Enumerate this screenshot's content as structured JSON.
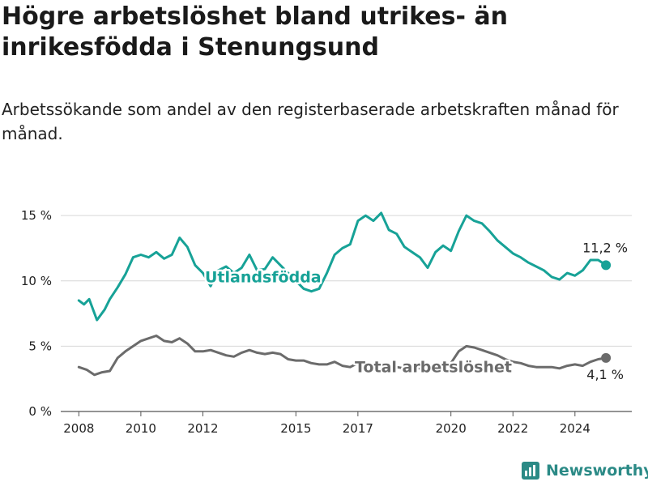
{
  "title": "Högre arbetslöshet bland utrikes- än inrikesfödda i Stenungsund",
  "subtitle": "Arbetssökande som andel av den registerbaserade arbetskraften månad för månad.",
  "brand": {
    "name": "Newsworthy",
    "icon": "bar-chart-logo-icon"
  },
  "colors": {
    "foreign": "#17a297",
    "total": "#6b6b6b",
    "grid": "#d7d7d7"
  },
  "chart_data": {
    "type": "line",
    "x_ticks": [
      "2008",
      "2010",
      "2012",
      "2015",
      "2017",
      "2020",
      "2022",
      "2024"
    ],
    "y_ticks": [
      "0 %",
      "5 %",
      "10 %",
      "15 %"
    ],
    "ylim": [
      0,
      16
    ],
    "xlim": [
      "2007-06",
      "2025-11"
    ],
    "grid": true,
    "series": [
      {
        "name": "Utlandsfödda",
        "end_label": "11,2 %",
        "points": [
          [
            "2008-01",
            8.5
          ],
          [
            "2008-03",
            8.2
          ],
          [
            "2008-05",
            8.6
          ],
          [
            "2008-08",
            7.0
          ],
          [
            "2008-11",
            7.8
          ],
          [
            "2009-01",
            8.6
          ],
          [
            "2009-04",
            9.5
          ],
          [
            "2009-07",
            10.5
          ],
          [
            "2009-10",
            11.8
          ],
          [
            "2010-01",
            12.0
          ],
          [
            "2010-04",
            11.8
          ],
          [
            "2010-07",
            12.2
          ],
          [
            "2010-10",
            11.7
          ],
          [
            "2011-01",
            12.0
          ],
          [
            "2011-04",
            13.3
          ],
          [
            "2011-07",
            12.6
          ],
          [
            "2011-10",
            11.2
          ],
          [
            "2012-01",
            10.6
          ],
          [
            "2012-04",
            9.6
          ],
          [
            "2012-07",
            10.8
          ],
          [
            "2012-10",
            11.1
          ],
          [
            "2013-01",
            10.6
          ],
          [
            "2013-04",
            11.0
          ],
          [
            "2013-07",
            12.0
          ],
          [
            "2013-10",
            10.8
          ],
          [
            "2014-01",
            10.9
          ],
          [
            "2014-04",
            11.8
          ],
          [
            "2014-07",
            11.2
          ],
          [
            "2014-10",
            10.6
          ],
          [
            "2015-01",
            10.0
          ],
          [
            "2015-04",
            9.4
          ],
          [
            "2015-07",
            9.2
          ],
          [
            "2015-10",
            9.4
          ],
          [
            "2016-01",
            10.6
          ],
          [
            "2016-04",
            12.0
          ],
          [
            "2016-07",
            12.5
          ],
          [
            "2016-10",
            12.8
          ],
          [
            "2017-01",
            14.6
          ],
          [
            "2017-04",
            15.0
          ],
          [
            "2017-07",
            14.6
          ],
          [
            "2017-10",
            15.2
          ],
          [
            "2018-01",
            13.9
          ],
          [
            "2018-04",
            13.6
          ],
          [
            "2018-07",
            12.6
          ],
          [
            "2018-10",
            12.2
          ],
          [
            "2019-01",
            11.8
          ],
          [
            "2019-04",
            11.0
          ],
          [
            "2019-07",
            12.2
          ],
          [
            "2019-10",
            12.7
          ],
          [
            "2020-01",
            12.3
          ],
          [
            "2020-04",
            13.8
          ],
          [
            "2020-07",
            15.0
          ],
          [
            "2020-10",
            14.6
          ],
          [
            "2021-01",
            14.4
          ],
          [
            "2021-04",
            13.8
          ],
          [
            "2021-07",
            13.1
          ],
          [
            "2021-10",
            12.6
          ],
          [
            "2022-01",
            12.1
          ],
          [
            "2022-04",
            11.8
          ],
          [
            "2022-07",
            11.4
          ],
          [
            "2022-10",
            11.1
          ],
          [
            "2023-01",
            10.8
          ],
          [
            "2023-04",
            10.3
          ],
          [
            "2023-07",
            10.1
          ],
          [
            "2023-10",
            10.6
          ],
          [
            "2024-01",
            10.4
          ],
          [
            "2024-04",
            10.8
          ],
          [
            "2024-07",
            11.6
          ],
          [
            "2024-10",
            11.6
          ],
          [
            "2025-01",
            11.2
          ]
        ]
      },
      {
        "name": "Total arbetslöshet",
        "end_label": "4,1 %",
        "points": [
          [
            "2008-01",
            3.4
          ],
          [
            "2008-04",
            3.2
          ],
          [
            "2008-07",
            2.8
          ],
          [
            "2008-10",
            3.0
          ],
          [
            "2009-01",
            3.1
          ],
          [
            "2009-04",
            4.1
          ],
          [
            "2009-07",
            4.6
          ],
          [
            "2009-10",
            5.0
          ],
          [
            "2010-01",
            5.4
          ],
          [
            "2010-04",
            5.6
          ],
          [
            "2010-07",
            5.8
          ],
          [
            "2010-10",
            5.4
          ],
          [
            "2011-01",
            5.3
          ],
          [
            "2011-04",
            5.6
          ],
          [
            "2011-07",
            5.2
          ],
          [
            "2011-10",
            4.6
          ],
          [
            "2012-01",
            4.6
          ],
          [
            "2012-04",
            4.7
          ],
          [
            "2012-07",
            4.5
          ],
          [
            "2012-10",
            4.3
          ],
          [
            "2013-01",
            4.2
          ],
          [
            "2013-04",
            4.5
          ],
          [
            "2013-07",
            4.7
          ],
          [
            "2013-10",
            4.5
          ],
          [
            "2014-01",
            4.4
          ],
          [
            "2014-04",
            4.5
          ],
          [
            "2014-07",
            4.4
          ],
          [
            "2014-10",
            4.0
          ],
          [
            "2015-01",
            3.9
          ],
          [
            "2015-04",
            3.9
          ],
          [
            "2015-07",
            3.7
          ],
          [
            "2015-10",
            3.6
          ],
          [
            "2016-01",
            3.6
          ],
          [
            "2016-04",
            3.8
          ],
          [
            "2016-07",
            3.5
          ],
          [
            "2016-10",
            3.4
          ],
          [
            "2017-01",
            3.7
          ],
          [
            "2017-04",
            3.6
          ],
          [
            "2017-07",
            3.5
          ],
          [
            "2017-10",
            3.5
          ],
          [
            "2018-01",
            3.4
          ],
          [
            "2018-04",
            3.4
          ],
          [
            "2018-07",
            3.3
          ],
          [
            "2018-10",
            3.3
          ],
          [
            "2019-01",
            3.3
          ],
          [
            "2019-04",
            3.5
          ],
          [
            "2019-07",
            3.6
          ],
          [
            "2019-10",
            3.6
          ],
          [
            "2020-01",
            3.7
          ],
          [
            "2020-04",
            4.6
          ],
          [
            "2020-07",
            5.0
          ],
          [
            "2020-10",
            4.9
          ],
          [
            "2021-01",
            4.7
          ],
          [
            "2021-04",
            4.5
          ],
          [
            "2021-07",
            4.3
          ],
          [
            "2021-10",
            4.0
          ],
          [
            "2022-01",
            3.8
          ],
          [
            "2022-04",
            3.7
          ],
          [
            "2022-07",
            3.5
          ],
          [
            "2022-10",
            3.4
          ],
          [
            "2023-01",
            3.4
          ],
          [
            "2023-04",
            3.4
          ],
          [
            "2023-07",
            3.3
          ],
          [
            "2023-10",
            3.5
          ],
          [
            "2024-01",
            3.6
          ],
          [
            "2024-04",
            3.5
          ],
          [
            "2024-07",
            3.8
          ],
          [
            "2024-10",
            4.0
          ],
          [
            "2025-01",
            4.1
          ]
        ]
      }
    ]
  }
}
